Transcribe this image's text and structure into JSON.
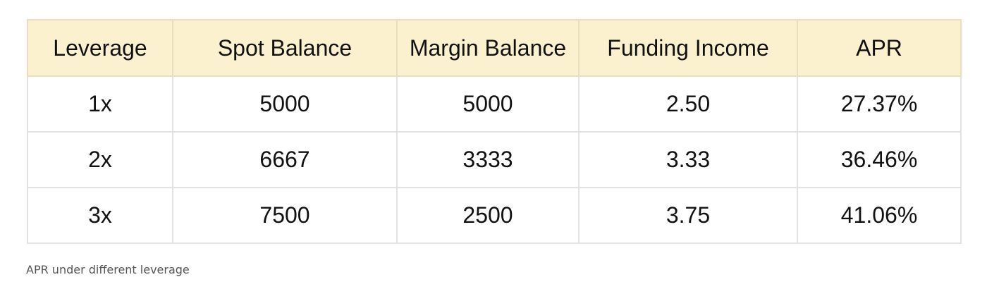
{
  "table": {
    "headers": [
      "Leverage",
      "Spot Balance",
      "Margin Balance",
      "Funding Income",
      "APR"
    ],
    "rows": [
      [
        "1x",
        "5000",
        "5000",
        "2.50",
        "27.37%"
      ],
      [
        "2x",
        "6667",
        "3333",
        "3.33",
        "36.46%"
      ],
      [
        "3x",
        "7500",
        "2500",
        "3.75",
        "41.06%"
      ]
    ]
  },
  "caption": "APR under different leverage",
  "colors": {
    "header_background": "#fcf1cf",
    "grid_line": "#e2e2e2",
    "text": "#111111",
    "caption_text": "#555555"
  }
}
